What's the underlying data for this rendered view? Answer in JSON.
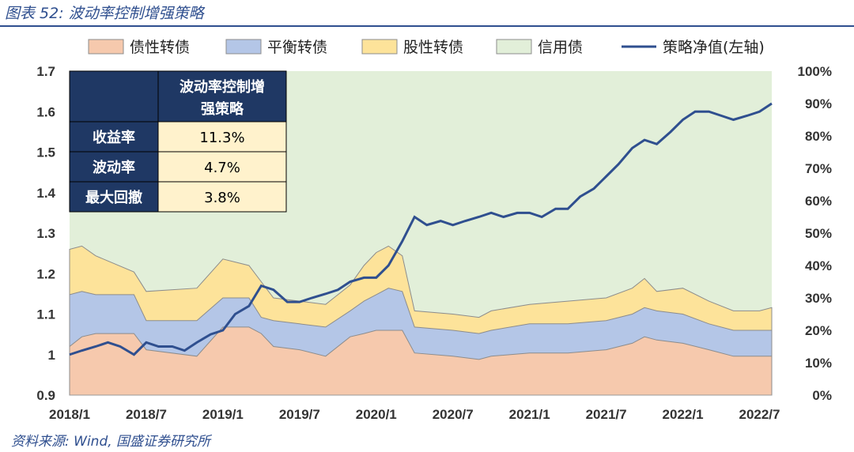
{
  "figure_title": "图表 52:  波动率控制增强策略",
  "source": "资料来源: Wind, 国盛证券研究所",
  "colors": {
    "credit_bond": "#f6c9ad",
    "balanced_cb": "#b4c6e7",
    "equity_cb": "#fde39a",
    "convertible_base": "#e2efd9",
    "nav_line": "#2f4f8f",
    "table_header": "#1f3864",
    "table_cell": "#fff2cc"
  },
  "summary_table": {
    "header": "波动率控制增强策略",
    "rows": [
      {
        "label": "收益率",
        "value": "11.3%"
      },
      {
        "label": "波动率",
        "value": "4.7%"
      },
      {
        "label": "最大回撤",
        "value": "3.8%"
      }
    ]
  },
  "chart_data": {
    "type": "area",
    "legend_placement": "top",
    "legend": [
      "债性转债",
      "平衡转债",
      "股性转债",
      "信用债",
      "策略净值(左轴)"
    ],
    "x_tick_labels": [
      "2018/1",
      "2018/7",
      "2019/1",
      "2019/7",
      "2020/1",
      "2020/7",
      "2021/1",
      "2021/7",
      "2022/1",
      "2022/7"
    ],
    "x_range": [
      2018.0,
      2022.58
    ],
    "left_axis": {
      "ticks": [
        0.9,
        1.0,
        1.1,
        1.2,
        1.3,
        1.4,
        1.5,
        1.6,
        1.7
      ],
      "tick_labels": [
        "0.9",
        "1",
        "1.1",
        "1.2",
        "1.3",
        "1.4",
        "1.5",
        "1.6",
        "1.7"
      ],
      "ylim": [
        0.9,
        1.7
      ]
    },
    "right_axis": {
      "ticks": [
        0,
        10,
        20,
        30,
        40,
        50,
        60,
        70,
        80,
        90,
        100
      ],
      "tick_labels": [
        "0%",
        "10%",
        "20%",
        "30%",
        "40%",
        "50%",
        "60%",
        "70%",
        "80%",
        "90%",
        "100%"
      ],
      "ylim": [
        0,
        100
      ]
    },
    "grid": false,
    "stacked_series": [
      {
        "name": "债性转债",
        "values_pct": [
          [
            2018.0,
            15
          ],
          [
            2018.08,
            18
          ],
          [
            2018.17,
            19
          ],
          [
            2018.42,
            19
          ],
          [
            2018.5,
            14
          ],
          [
            2018.83,
            12
          ],
          [
            2019.0,
            21
          ],
          [
            2019.17,
            21
          ],
          [
            2019.25,
            19
          ],
          [
            2019.33,
            15
          ],
          [
            2019.5,
            14
          ],
          [
            2019.67,
            12
          ],
          [
            2019.83,
            18
          ],
          [
            2019.92,
            19
          ],
          [
            2020.0,
            20
          ],
          [
            2020.08,
            20
          ],
          [
            2020.17,
            20
          ],
          [
            2020.25,
            13
          ],
          [
            2020.5,
            12
          ],
          [
            2020.67,
            11
          ],
          [
            2020.75,
            12
          ],
          [
            2021.0,
            13
          ],
          [
            2021.25,
            13
          ],
          [
            2021.5,
            14
          ],
          [
            2021.67,
            16
          ],
          [
            2021.75,
            18
          ],
          [
            2021.83,
            17
          ],
          [
            2022.0,
            16
          ],
          [
            2022.17,
            14
          ],
          [
            2022.33,
            12
          ],
          [
            2022.5,
            12
          ],
          [
            2022.58,
            12
          ]
        ]
      },
      {
        "name": "平衡转债",
        "values_pct": [
          [
            2018.0,
            31
          ],
          [
            2018.08,
            32
          ],
          [
            2018.17,
            31
          ],
          [
            2018.42,
            31
          ],
          [
            2018.5,
            23
          ],
          [
            2018.83,
            23
          ],
          [
            2019.0,
            30
          ],
          [
            2019.17,
            30
          ],
          [
            2019.25,
            24
          ],
          [
            2019.33,
            23
          ],
          [
            2019.5,
            22
          ],
          [
            2019.67,
            21
          ],
          [
            2019.83,
            26
          ],
          [
            2019.92,
            29
          ],
          [
            2020.0,
            31
          ],
          [
            2020.08,
            33
          ],
          [
            2020.17,
            32
          ],
          [
            2020.25,
            21
          ],
          [
            2020.5,
            20
          ],
          [
            2020.67,
            19
          ],
          [
            2020.75,
            20
          ],
          [
            2021.0,
            22
          ],
          [
            2021.25,
            22
          ],
          [
            2021.5,
            23
          ],
          [
            2021.67,
            25
          ],
          [
            2021.75,
            27
          ],
          [
            2021.83,
            26
          ],
          [
            2022.0,
            25
          ],
          [
            2022.17,
            22
          ],
          [
            2022.33,
            20
          ],
          [
            2022.5,
            20
          ],
          [
            2022.58,
            20
          ]
        ]
      },
      {
        "name": "股性转债",
        "values_pct": [
          [
            2018.0,
            45
          ],
          [
            2018.08,
            46
          ],
          [
            2018.17,
            43
          ],
          [
            2018.42,
            38
          ],
          [
            2018.5,
            32
          ],
          [
            2018.83,
            33
          ],
          [
            2019.0,
            42
          ],
          [
            2019.17,
            40
          ],
          [
            2019.25,
            35
          ],
          [
            2019.33,
            30
          ],
          [
            2019.5,
            29
          ],
          [
            2019.67,
            28
          ],
          [
            2019.83,
            34
          ],
          [
            2019.92,
            40
          ],
          [
            2020.0,
            44
          ],
          [
            2020.08,
            46
          ],
          [
            2020.17,
            43
          ],
          [
            2020.25,
            26
          ],
          [
            2020.5,
            25
          ],
          [
            2020.67,
            24
          ],
          [
            2020.75,
            26
          ],
          [
            2021.0,
            28
          ],
          [
            2021.25,
            29
          ],
          [
            2021.5,
            30
          ],
          [
            2021.67,
            33
          ],
          [
            2021.75,
            36
          ],
          [
            2021.83,
            32
          ],
          [
            2022.0,
            33
          ],
          [
            2022.17,
            29
          ],
          [
            2022.33,
            26
          ],
          [
            2022.5,
            26
          ],
          [
            2022.58,
            27
          ]
        ]
      },
      {
        "name": "信用债",
        "values_pct": [
          [
            2018.0,
            100
          ],
          [
            2022.58,
            100
          ]
        ]
      }
    ],
    "line_series": {
      "name": "策略净值(左轴)",
      "axis": "left",
      "values": [
        [
          2018.0,
          1.0
        ],
        [
          2018.08,
          1.01
        ],
        [
          2018.17,
          1.02
        ],
        [
          2018.25,
          1.03
        ],
        [
          2018.33,
          1.02
        ],
        [
          2018.42,
          1.0
        ],
        [
          2018.5,
          1.03
        ],
        [
          2018.58,
          1.02
        ],
        [
          2018.67,
          1.02
        ],
        [
          2018.75,
          1.01
        ],
        [
          2018.83,
          1.03
        ],
        [
          2018.92,
          1.05
        ],
        [
          2019.0,
          1.06
        ],
        [
          2019.08,
          1.1
        ],
        [
          2019.17,
          1.12
        ],
        [
          2019.25,
          1.17
        ],
        [
          2019.33,
          1.16
        ],
        [
          2019.42,
          1.13
        ],
        [
          2019.5,
          1.13
        ],
        [
          2019.58,
          1.14
        ],
        [
          2019.67,
          1.15
        ],
        [
          2019.75,
          1.16
        ],
        [
          2019.83,
          1.18
        ],
        [
          2019.92,
          1.19
        ],
        [
          2020.0,
          1.19
        ],
        [
          2020.08,
          1.22
        ],
        [
          2020.17,
          1.28
        ],
        [
          2020.25,
          1.34
        ],
        [
          2020.33,
          1.32
        ],
        [
          2020.42,
          1.33
        ],
        [
          2020.5,
          1.32
        ],
        [
          2020.58,
          1.33
        ],
        [
          2020.67,
          1.34
        ],
        [
          2020.75,
          1.35
        ],
        [
          2020.83,
          1.34
        ],
        [
          2020.92,
          1.35
        ],
        [
          2021.0,
          1.35
        ],
        [
          2021.08,
          1.34
        ],
        [
          2021.17,
          1.36
        ],
        [
          2021.25,
          1.36
        ],
        [
          2021.33,
          1.39
        ],
        [
          2021.42,
          1.41
        ],
        [
          2021.5,
          1.44
        ],
        [
          2021.58,
          1.47
        ],
        [
          2021.67,
          1.51
        ],
        [
          2021.75,
          1.53
        ],
        [
          2021.83,
          1.52
        ],
        [
          2021.92,
          1.55
        ],
        [
          2022.0,
          1.58
        ],
        [
          2022.08,
          1.6
        ],
        [
          2022.17,
          1.6
        ],
        [
          2022.25,
          1.59
        ],
        [
          2022.33,
          1.58
        ],
        [
          2022.42,
          1.59
        ],
        [
          2022.5,
          1.6
        ],
        [
          2022.58,
          1.62
        ]
      ]
    }
  }
}
